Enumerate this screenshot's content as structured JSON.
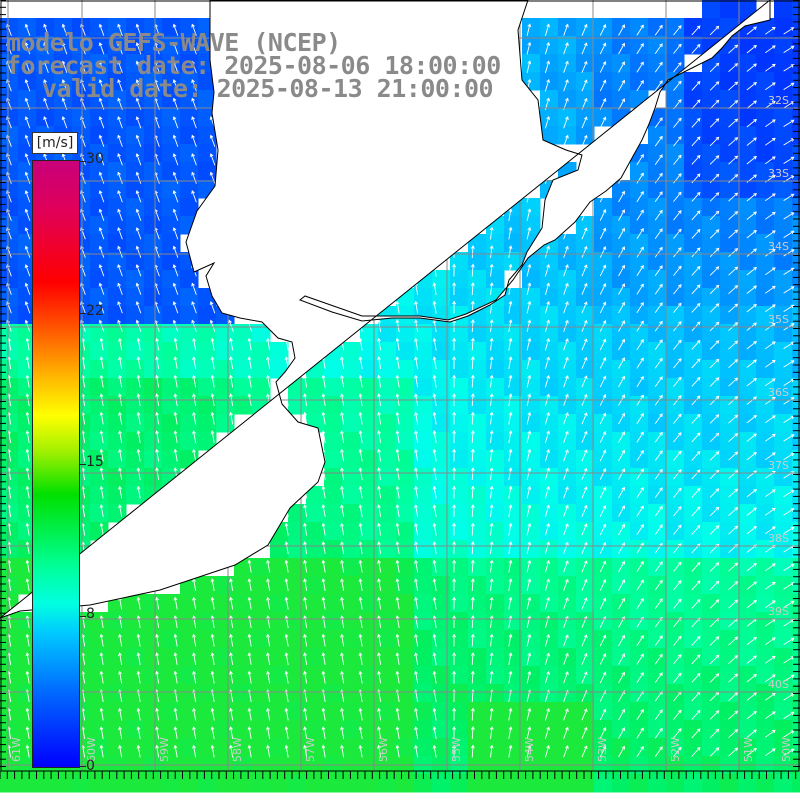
{
  "title": {
    "line1": "modelo GEFS-WAVE (NCEP)",
    "line2": "forecast date: 2025-08-06 18:00:00",
    "line3": "valid date: 2025-08-13 21:00:00"
  },
  "colorbar": {
    "unit": "[m/s]",
    "min": 0,
    "max": 30,
    "tick_labels": [
      "30",
      "22",
      "15",
      "8",
      "0"
    ],
    "tick_values": [
      30,
      22,
      15,
      8,
      0
    ]
  },
  "lon_labels": [
    "61W",
    "60W",
    "59W",
    "58W",
    "57W",
    "56W",
    "55W",
    "54W",
    "53W",
    "52W",
    "51W",
    "50W"
  ],
  "lat_labels": [
    "32S",
    "33S",
    "34S",
    "35S",
    "36S",
    "37S",
    "38S",
    "39S",
    "40S"
  ],
  "colors": {
    "land": "#ffffff",
    "grid": "#888888",
    "coast": "#000000",
    "arrow": "#ffffff"
  }
}
